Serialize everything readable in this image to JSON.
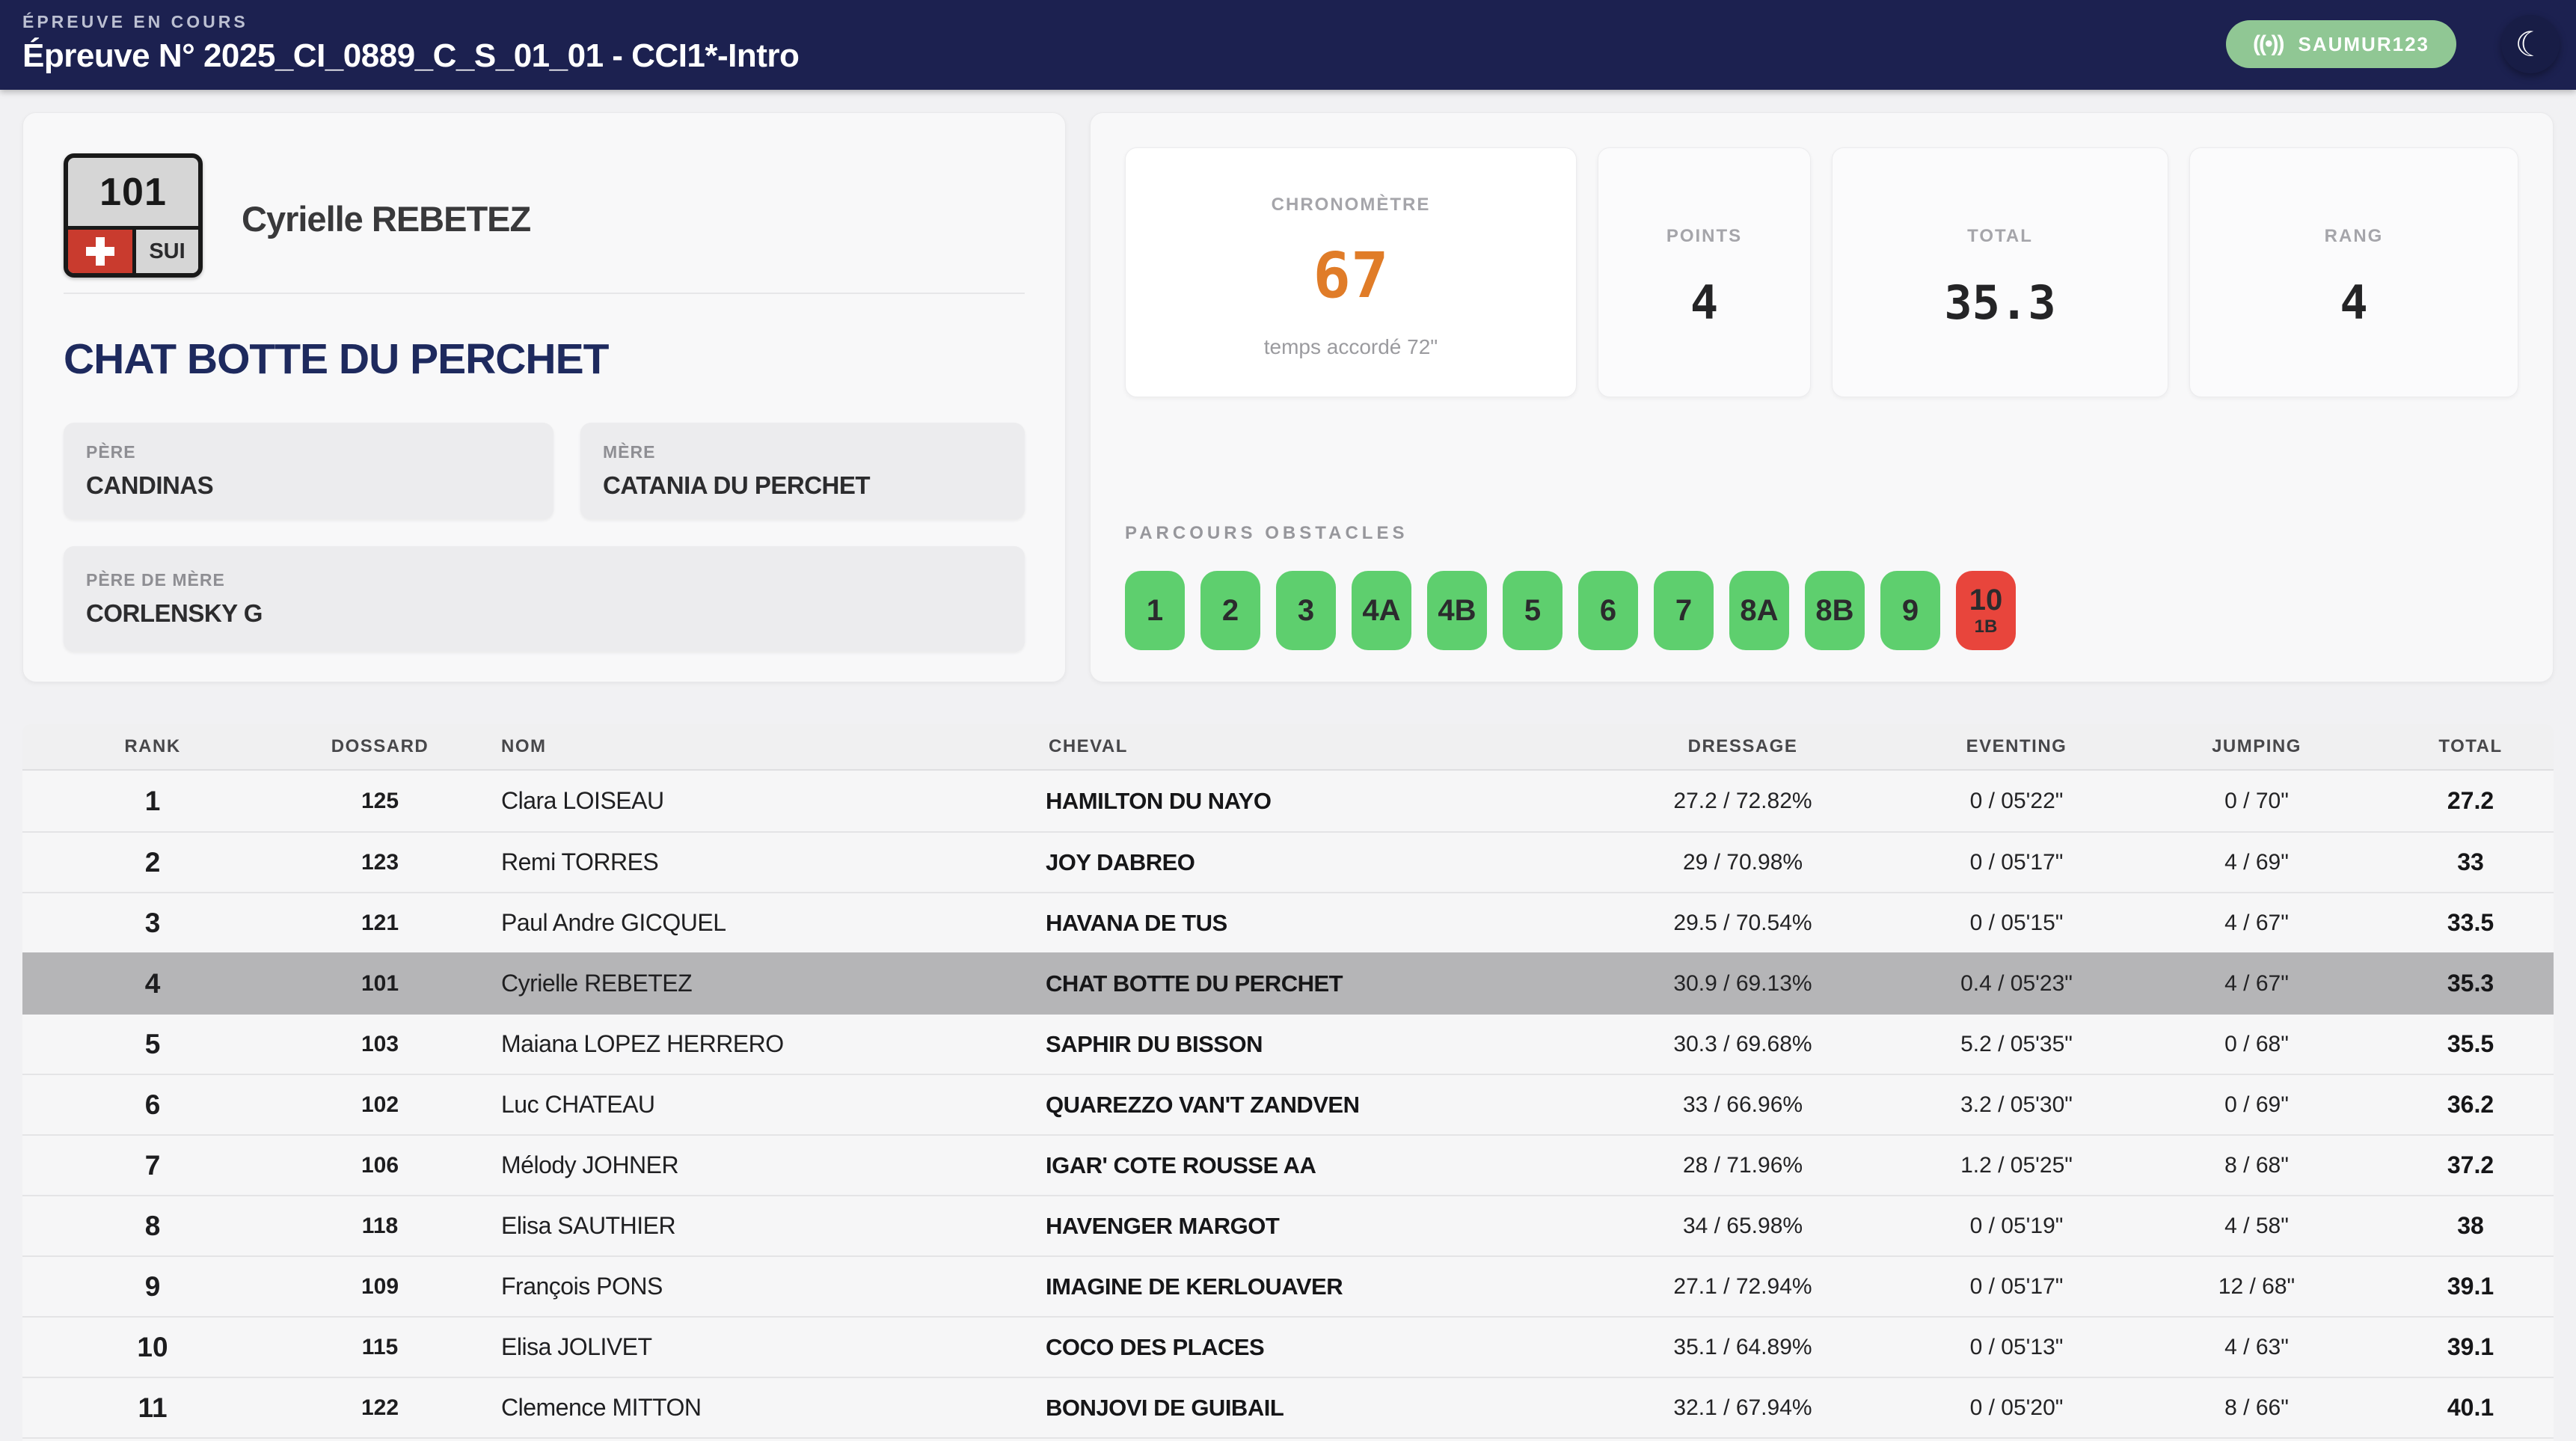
{
  "colors": {
    "navy": "#1c2150",
    "page": "#f1f1f3",
    "card": "#f8f8f9",
    "white": "#ffffff",
    "label_gray": "#a5a5aa",
    "text_dark": "#2c2c2e",
    "horse_navy": "#1e2a5e",
    "green": "#5ecf6e",
    "red": "#e8453c",
    "orange": "#e07c28",
    "pill_green": "#90c794",
    "highlight": "#b5b5b7",
    "row": "#f6f6f7",
    "row_sep": "#e4e4e6",
    "thead": "#f0f0f1"
  },
  "header": {
    "kicker": "ÉPREUVE EN COURS",
    "title": "Épreuve N° 2025_CI_0889_C_S_01_01 - CCI1*-Intro",
    "broadcast_icon": "((•))",
    "live_badge": "SAUMUR123",
    "moon_icon": "☾"
  },
  "competitor": {
    "bib": "101",
    "nation": "SUI",
    "rider": "Cyrielle REBETEZ",
    "horse": "CHAT BOTTE DU PERCHET",
    "pedigree": {
      "sire_label": "PÈRE",
      "sire": "CANDINAS",
      "dam_label": "MÈRE",
      "dam": "CATANIA DU PERCHET",
      "damsire_label": "PÈRE DE MÈRE",
      "damsire": "CORLENSKY G"
    }
  },
  "stats": {
    "chrono": {
      "label": "CHRONOMÈTRE",
      "value": "67",
      "sub": "temps accordé 72\""
    },
    "points": {
      "label": "POINTS",
      "value": "4"
    },
    "total": {
      "label": "TOTAL",
      "value": "35.3"
    },
    "rank": {
      "label": "RANG",
      "value": "4"
    }
  },
  "obstacles": {
    "label": "PARCOURS OBSTACLES",
    "items": [
      {
        "id": "1",
        "status": "clear"
      },
      {
        "id": "2",
        "status": "clear"
      },
      {
        "id": "3",
        "status": "clear"
      },
      {
        "id": "4A",
        "status": "clear"
      },
      {
        "id": "4B",
        "status": "clear"
      },
      {
        "id": "5",
        "status": "clear"
      },
      {
        "id": "6",
        "status": "clear"
      },
      {
        "id": "7",
        "status": "clear"
      },
      {
        "id": "8A",
        "status": "clear"
      },
      {
        "id": "8B",
        "status": "clear"
      },
      {
        "id": "9",
        "status": "clear"
      },
      {
        "id": "10",
        "sub": "1B",
        "status": "fault"
      }
    ]
  },
  "table": {
    "columns": [
      "RANK",
      "DOSSARD",
      "NOM",
      "CHEVAL",
      "DRESSAGE",
      "EVENTING",
      "JUMPING",
      "TOTAL"
    ],
    "rows": [
      {
        "rank": "1",
        "dossard": "125",
        "nom": "Clara LOISEAU",
        "cheval": "HAMILTON DU NAYO",
        "dressage": "27.2 / 72.82%",
        "eventing": "0 / 05'22\"",
        "jumping": "0 / 70\"",
        "total": "27.2",
        "highlight": false
      },
      {
        "rank": "2",
        "dossard": "123",
        "nom": "Remi TORRES",
        "cheval": "JOY DABREO",
        "dressage": "29 / 70.98%",
        "eventing": "0 / 05'17\"",
        "jumping": "4 / 69\"",
        "total": "33",
        "highlight": false
      },
      {
        "rank": "3",
        "dossard": "121",
        "nom": "Paul Andre GICQUEL",
        "cheval": "HAVANA DE TUS",
        "dressage": "29.5 / 70.54%",
        "eventing": "0 / 05'15\"",
        "jumping": "4 / 67\"",
        "total": "33.5",
        "highlight": false
      },
      {
        "rank": "4",
        "dossard": "101",
        "nom": "Cyrielle REBETEZ",
        "cheval": "CHAT BOTTE DU PERCHET",
        "dressage": "30.9 / 69.13%",
        "eventing": "0.4 / 05'23\"",
        "jumping": "4 / 67\"",
        "total": "35.3",
        "highlight": true
      },
      {
        "rank": "5",
        "dossard": "103",
        "nom": "Maiana LOPEZ HERRERO",
        "cheval": "SAPHIR DU BISSON",
        "dressage": "30.3 / 69.68%",
        "eventing": "5.2 / 05'35\"",
        "jumping": "0 / 68\"",
        "total": "35.5",
        "highlight": false
      },
      {
        "rank": "6",
        "dossard": "102",
        "nom": "Luc CHATEAU",
        "cheval": "QUAREZZO VAN'T ZANDVEN",
        "dressage": "33 / 66.96%",
        "eventing": "3.2 / 05'30\"",
        "jumping": "0 / 69\"",
        "total": "36.2",
        "highlight": false
      },
      {
        "rank": "7",
        "dossard": "106",
        "nom": "Mélody JOHNER",
        "cheval": "IGAR' COTE ROUSSE AA",
        "dressage": "28 / 71.96%",
        "eventing": "1.2 / 05'25\"",
        "jumping": "8 / 68\"",
        "total": "37.2",
        "highlight": false
      },
      {
        "rank": "8",
        "dossard": "118",
        "nom": "Elisa SAUTHIER",
        "cheval": "HAVENGER MARGOT",
        "dressage": "34 / 65.98%",
        "eventing": "0 / 05'19\"",
        "jumping": "4 / 58\"",
        "total": "38",
        "highlight": false
      },
      {
        "rank": "9",
        "dossard": "109",
        "nom": "François PONS",
        "cheval": "IMAGINE DE KERLOUAVER",
        "dressage": "27.1 / 72.94%",
        "eventing": "0 / 05'17\"",
        "jumping": "12 / 68\"",
        "total": "39.1",
        "highlight": false
      },
      {
        "rank": "10",
        "dossard": "115",
        "nom": "Elisa JOLIVET",
        "cheval": "COCO DES PLACES",
        "dressage": "35.1 / 64.89%",
        "eventing": "0 / 05'13\"",
        "jumping": "4 / 63\"",
        "total": "39.1",
        "highlight": false
      },
      {
        "rank": "11",
        "dossard": "122",
        "nom": "Clemence MITTON",
        "cheval": "BONJOVI DE GUIBAIL",
        "dressage": "32.1 / 67.94%",
        "eventing": "0 / 05'20\"",
        "jumping": "8 / 66\"",
        "total": "40.1",
        "highlight": false
      }
    ]
  }
}
